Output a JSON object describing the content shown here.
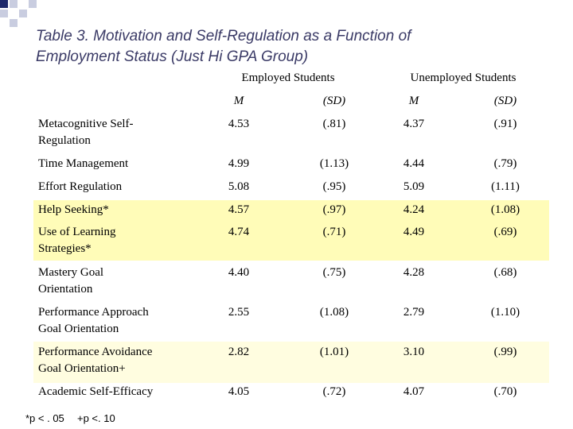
{
  "title": "Table 3. Motivation and Self-Regulation as a Function of Employment Status (Just Hi GPA Group)",
  "table": {
    "groups": [
      "Employed Students",
      "Unemployed Students"
    ],
    "subheaders": [
      "M",
      "(SD)",
      "M",
      "(SD)"
    ],
    "rows": [
      {
        "label": [
          "Metacognitive Self-",
          "Regulation"
        ],
        "cells": [
          "4.53",
          "(.81)",
          "4.37",
          "(.91)"
        ]
      },
      {
        "label": [
          "Time Management"
        ],
        "cells": [
          "4.99",
          "(1.13)",
          "4.44",
          "(.79)"
        ]
      },
      {
        "label": [
          "Effort Regulation"
        ],
        "cells": [
          "5.08",
          "(.95)",
          "5.09",
          "(1.11)"
        ]
      },
      {
        "label": [
          "Help Seeking*"
        ],
        "cells": [
          "4.57",
          "(.97)",
          "4.24",
          "(1.08)"
        ]
      },
      {
        "label": [
          "Use of Learning",
          "Strategies*"
        ],
        "cells": [
          "4.74",
          "(.71)",
          "4.49",
          "(.69)"
        ]
      },
      {
        "label": [
          "Mastery Goal",
          "Orientation"
        ],
        "cells": [
          "4.40",
          "(.75)",
          "4.28",
          "(.68)"
        ]
      },
      {
        "label": [
          "Performance Approach",
          "Goal Orientation"
        ],
        "cells": [
          "2.55",
          "(1.08)",
          "2.79",
          "(1.10)"
        ]
      },
      {
        "label": [
          "Performance Avoidance",
          "Goal Orientation+"
        ],
        "cells": [
          "2.82",
          "(1.01)",
          "3.10",
          "(.99)"
        ]
      },
      {
        "label": [
          "Academic Self-Efficacy"
        ],
        "cells": [
          "4.05",
          "(.72)",
          "4.07",
          "(.70)"
        ]
      }
    ]
  },
  "footnotes": [
    "*p < . 05",
    "+p <. 10"
  ]
}
